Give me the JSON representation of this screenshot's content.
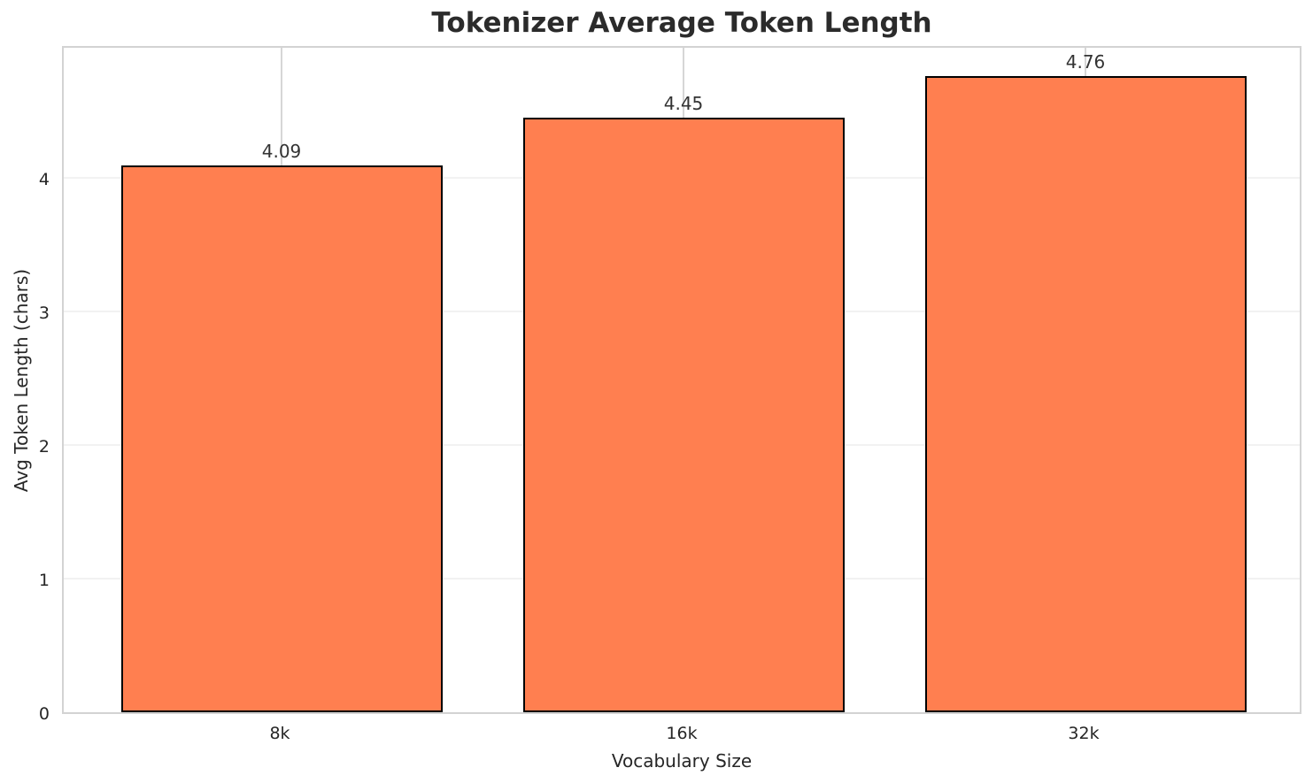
{
  "chart_data": {
    "type": "bar",
    "title": "Tokenizer Average Token Length",
    "xlabel": "Vocabulary Size",
    "ylabel": "Avg Token Length (chars)",
    "categories": [
      "8k",
      "16k",
      "32k"
    ],
    "values": [
      4.09,
      4.45,
      4.76
    ],
    "value_labels": [
      "4.09",
      "4.45",
      "4.76"
    ],
    "y_ticks": [
      0,
      1,
      2,
      3,
      4
    ],
    "ylim": [
      0,
      5
    ],
    "grid": "both",
    "legend_position": "none",
    "colors": {
      "bar_fill": "#FF7F50",
      "bar_edge": "#000000",
      "plot_border": "#D3D3D3",
      "gridline_horizontal": "#F2F2F2",
      "gridline_vertical": "#D6D6D6",
      "title_text": "#2B2B2B",
      "label_text": "#262626",
      "background": "#FFFFFF"
    }
  }
}
